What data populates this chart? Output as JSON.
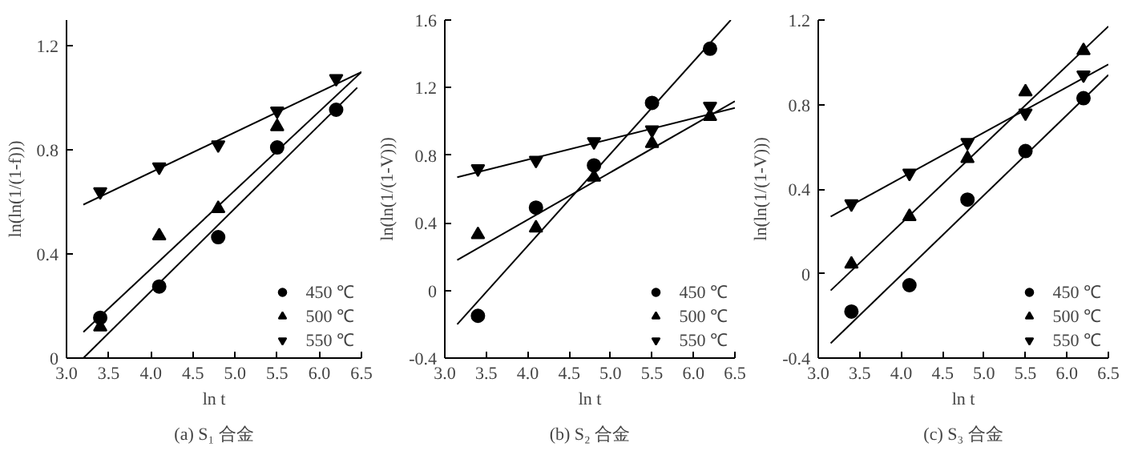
{
  "chart_data": [
    {
      "type": "scatter",
      "title": "(a) S₁ 合金",
      "xlabel": "ln t",
      "ylabel": "ln(ln(1/(1-f)))",
      "x": [
        3.4,
        4.1,
        4.8,
        5.5,
        6.2
      ],
      "xlim": [
        3.0,
        6.5
      ],
      "xticks": [
        {
          "value": 3,
          "label": "3.0"
        },
        3.5,
        {
          "value": 4,
          "label": "4.0"
        },
        4.5,
        {
          "value": 5,
          "label": "5.0"
        },
        5.5,
        {
          "value": 6,
          "label": "6.0"
        },
        6.5
      ],
      "ylim": [
        0,
        1.3
      ],
      "yticks": [
        0,
        0.4,
        0.8,
        1.2
      ],
      "grid": false,
      "legend": "bottom right",
      "series": [
        {
          "name": "450 ℃",
          "color": "#000000",
          "marker": "circle",
          "values": [
            0.155,
            0.275,
            0.465,
            0.81,
            0.955
          ]
        },
        {
          "name": "500 ℃",
          "color": "#000000",
          "marker": "triangle",
          "values": [
            0.12,
            0.47,
            0.575,
            0.89,
            null
          ]
        },
        {
          "name": "550 ℃",
          "color": "#000000",
          "marker": "triangle_down",
          "values": [
            0.64,
            0.735,
            0.82,
            0.95,
            1.075
          ]
        },
        {
          "type": "line",
          "color": "#000000",
          "x": [
            3.2,
            6.45
          ],
          "values": [
            0.0,
            1.04
          ]
        },
        {
          "type": "line",
          "color": "#000000",
          "x": [
            3.2,
            6.5
          ],
          "values": [
            0.1,
            1.1
          ]
        },
        {
          "type": "line",
          "color": "#000000",
          "x": [
            3.2,
            6.5
          ],
          "values": [
            0.59,
            1.1
          ]
        }
      ]
    },
    {
      "type": "scatter",
      "title": "(b) S₂ 合金",
      "xlabel": "ln t",
      "ylabel": "ln(ln(1/(1-V)))",
      "x": [
        3.4,
        4.1,
        4.8,
        5.5,
        6.2
      ],
      "xlim": [
        3.0,
        6.5
      ],
      "xticks": [
        {
          "value": 3,
          "label": "3.0"
        },
        3.5,
        {
          "value": 4,
          "label": "4.0"
        },
        4.5,
        {
          "value": 5,
          "label": "5.0"
        },
        5.5,
        {
          "value": 6,
          "label": "6.0"
        },
        6.5
      ],
      "ylim": [
        -0.4,
        1.6
      ],
      "yticks": [
        -0.4,
        0,
        0.4,
        0.8,
        1.2,
        1.6
      ],
      "grid": false,
      "legend": "bottom right",
      "series": [
        {
          "name": "450 ℃",
          "color": "#000000",
          "marker": "circle",
          "values": [
            -0.15,
            0.49,
            0.74,
            1.11,
            1.43
          ]
        },
        {
          "name": "500 ℃",
          "color": "#000000",
          "marker": "triangle",
          "values": [
            0.33,
            0.37,
            0.67,
            0.87,
            1.03
          ]
        },
        {
          "name": "550 ℃",
          "color": "#000000",
          "marker": "triangle_down",
          "values": [
            0.72,
            0.77,
            0.88,
            0.95,
            1.09
          ]
        },
        {
          "type": "line",
          "color": "#000000",
          "x": [
            3.15,
            6.45
          ],
          "values": [
            -0.2,
            1.6
          ]
        },
        {
          "type": "line",
          "color": "#000000",
          "x": [
            3.15,
            6.5
          ],
          "values": [
            0.18,
            1.12
          ]
        },
        {
          "type": "line",
          "color": "#000000",
          "x": [
            3.15,
            6.5
          ],
          "values": [
            0.67,
            1.08
          ]
        }
      ]
    },
    {
      "type": "scatter",
      "title": "(c) S₃ 合金",
      "xlabel": "ln t",
      "ylabel": "ln(ln(1/(1-V)))",
      "x": [
        3.4,
        4.1,
        4.8,
        5.5,
        6.2
      ],
      "xlim": [
        3.0,
        6.5
      ],
      "xticks": [
        {
          "value": 3,
          "label": "3.0"
        },
        3.5,
        {
          "value": 4,
          "label": "4.0"
        },
        4.5,
        {
          "value": 5,
          "label": "5.0"
        },
        5.5,
        {
          "value": 6,
          "label": "6.0"
        },
        6.5
      ],
      "ylim": [
        -0.4,
        1.2
      ],
      "yticks": [
        -0.4,
        0,
        0.4,
        0.8,
        1.2
      ],
      "grid": false,
      "legend": "bottom right",
      "series": [
        {
          "name": "450 ℃",
          "color": "#000000",
          "marker": "circle",
          "values": [
            -0.18,
            -0.055,
            0.35,
            0.58,
            0.83
          ]
        },
        {
          "name": "500 ℃",
          "color": "#000000",
          "marker": "triangle",
          "values": [
            0.045,
            0.27,
            0.545,
            0.86,
            1.055
          ]
        },
        {
          "name": "550 ℃",
          "color": "#000000",
          "marker": "triangle_down",
          "values": [
            0.33,
            0.475,
            0.62,
            0.76,
            0.94
          ]
        },
        {
          "type": "line",
          "color": "#000000",
          "x": [
            3.15,
            6.5
          ],
          "values": [
            -0.33,
            0.94
          ]
        },
        {
          "type": "line",
          "color": "#000000",
          "x": [
            3.15,
            6.5
          ],
          "values": [
            -0.08,
            1.17
          ]
        },
        {
          "type": "line",
          "color": "#000000",
          "x": [
            3.15,
            6.5
          ],
          "values": [
            0.27,
            0.99
          ]
        }
      ]
    }
  ]
}
